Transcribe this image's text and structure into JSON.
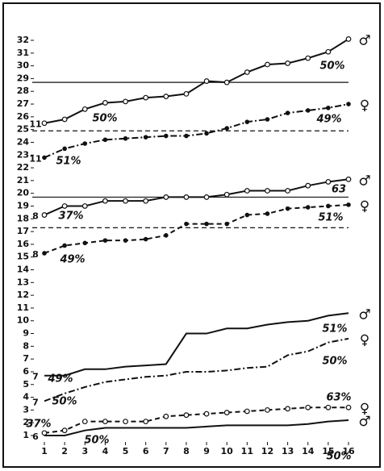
{
  "chart_data": {
    "type": "line",
    "x": [
      1,
      2,
      3,
      4,
      5,
      6,
      7,
      8,
      9,
      10,
      11,
      12,
      13,
      14,
      15,
      16
    ],
    "xlim": [
      1,
      16
    ],
    "xticks": [
      1,
      2,
      3,
      4,
      5,
      6,
      7,
      8,
      9,
      10,
      11,
      12,
      13,
      14,
      15,
      16
    ],
    "ylim": [
      1,
      32
    ],
    "yticks": [
      1,
      2,
      3,
      4,
      5,
      6,
      7,
      8,
      9,
      10,
      11,
      12,
      13,
      14,
      15,
      16,
      17,
      18,
      19,
      20,
      21,
      22,
      23,
      24,
      25,
      26,
      27,
      28,
      29,
      30,
      31,
      32
    ],
    "reference_lines": [
      {
        "value": 28.7,
        "style": "solid"
      },
      {
        "value": 24.9,
        "style": "dashed"
      },
      {
        "value": 19.7,
        "style": "solid"
      },
      {
        "value": 17.3,
        "style": "dashed"
      }
    ],
    "series": [
      {
        "label": "11",
        "sex": "♂",
        "style": "solid",
        "marker": "circle",
        "color": "#111",
        "values": [
          25.5,
          25.8,
          26.6,
          27.1,
          27.2,
          27.5,
          27.6,
          27.8,
          28.8,
          28.7,
          29.5,
          30.1,
          30.2,
          30.6,
          31.1,
          32.1
        ]
      },
      {
        "label": "11",
        "sex": "♀",
        "style": "dashdot",
        "marker": "dot",
        "color": "#111",
        "values": [
          22.8,
          23.5,
          23.9,
          24.2,
          24.3,
          24.4,
          24.5,
          24.5,
          24.7,
          25.1,
          25.6,
          25.8,
          26.3,
          26.5,
          26.7,
          27.0
        ]
      },
      {
        "label": "8",
        "sex": "♂",
        "style": "solid",
        "marker": "circle",
        "color": "#111",
        "values": [
          18.3,
          19.0,
          19.0,
          19.4,
          19.4,
          19.4,
          19.7,
          19.7,
          19.7,
          19.9,
          20.2,
          20.2,
          20.2,
          20.6,
          20.9,
          21.1
        ]
      },
      {
        "label": "8",
        "sex": "♀",
        "style": "dashed",
        "marker": "dot",
        "color": "#111",
        "values": [
          15.3,
          15.9,
          16.1,
          16.3,
          16.3,
          16.4,
          16.7,
          17.6,
          17.6,
          17.6,
          18.3,
          18.4,
          18.8,
          18.9,
          19.0,
          19.1
        ]
      },
      {
        "label": "7",
        "sex": "♂",
        "style": "solid",
        "marker": "none",
        "color": "#111",
        "values": [
          5.7,
          5.7,
          6.2,
          6.2,
          6.4,
          6.5,
          6.6,
          9.0,
          9.0,
          9.4,
          9.4,
          9.7,
          9.9,
          10.0,
          10.4,
          10.6
        ]
      },
      {
        "label": "7",
        "sex": "♀",
        "style": "dashdot",
        "marker": "none",
        "color": "#111",
        "values": [
          3.7,
          4.3,
          4.8,
          5.2,
          5.4,
          5.6,
          5.7,
          6.0,
          6.0,
          6.1,
          6.3,
          6.4,
          7.3,
          7.6,
          8.3,
          8.6
        ]
      },
      {
        "sex": "♀",
        "style": "dashed",
        "marker": "circle",
        "color": "#111",
        "values": [
          1.2,
          1.4,
          2.1,
          2.1,
          2.1,
          2.1,
          2.5,
          2.6,
          2.7,
          2.8,
          2.9,
          3.0,
          3.1,
          3.2,
          3.2,
          3.2
        ]
      },
      {
        "label": "6",
        "sex": "♂",
        "style": "solid",
        "marker": "none",
        "color": "#111",
        "values": [
          1.0,
          1.0,
          1.4,
          1.6,
          1.6,
          1.6,
          1.6,
          1.6,
          1.7,
          1.8,
          1.8,
          1.8,
          1.8,
          1.9,
          2.1,
          2.2
        ]
      }
    ],
    "annotations": [
      "50%",
      "49%",
      "51%",
      "50%",
      "37%",
      "63",
      "51%",
      "49%",
      "49%",
      "51%",
      "50%",
      "50%",
      "37%",
      "50%",
      "63%",
      "50%"
    ]
  }
}
